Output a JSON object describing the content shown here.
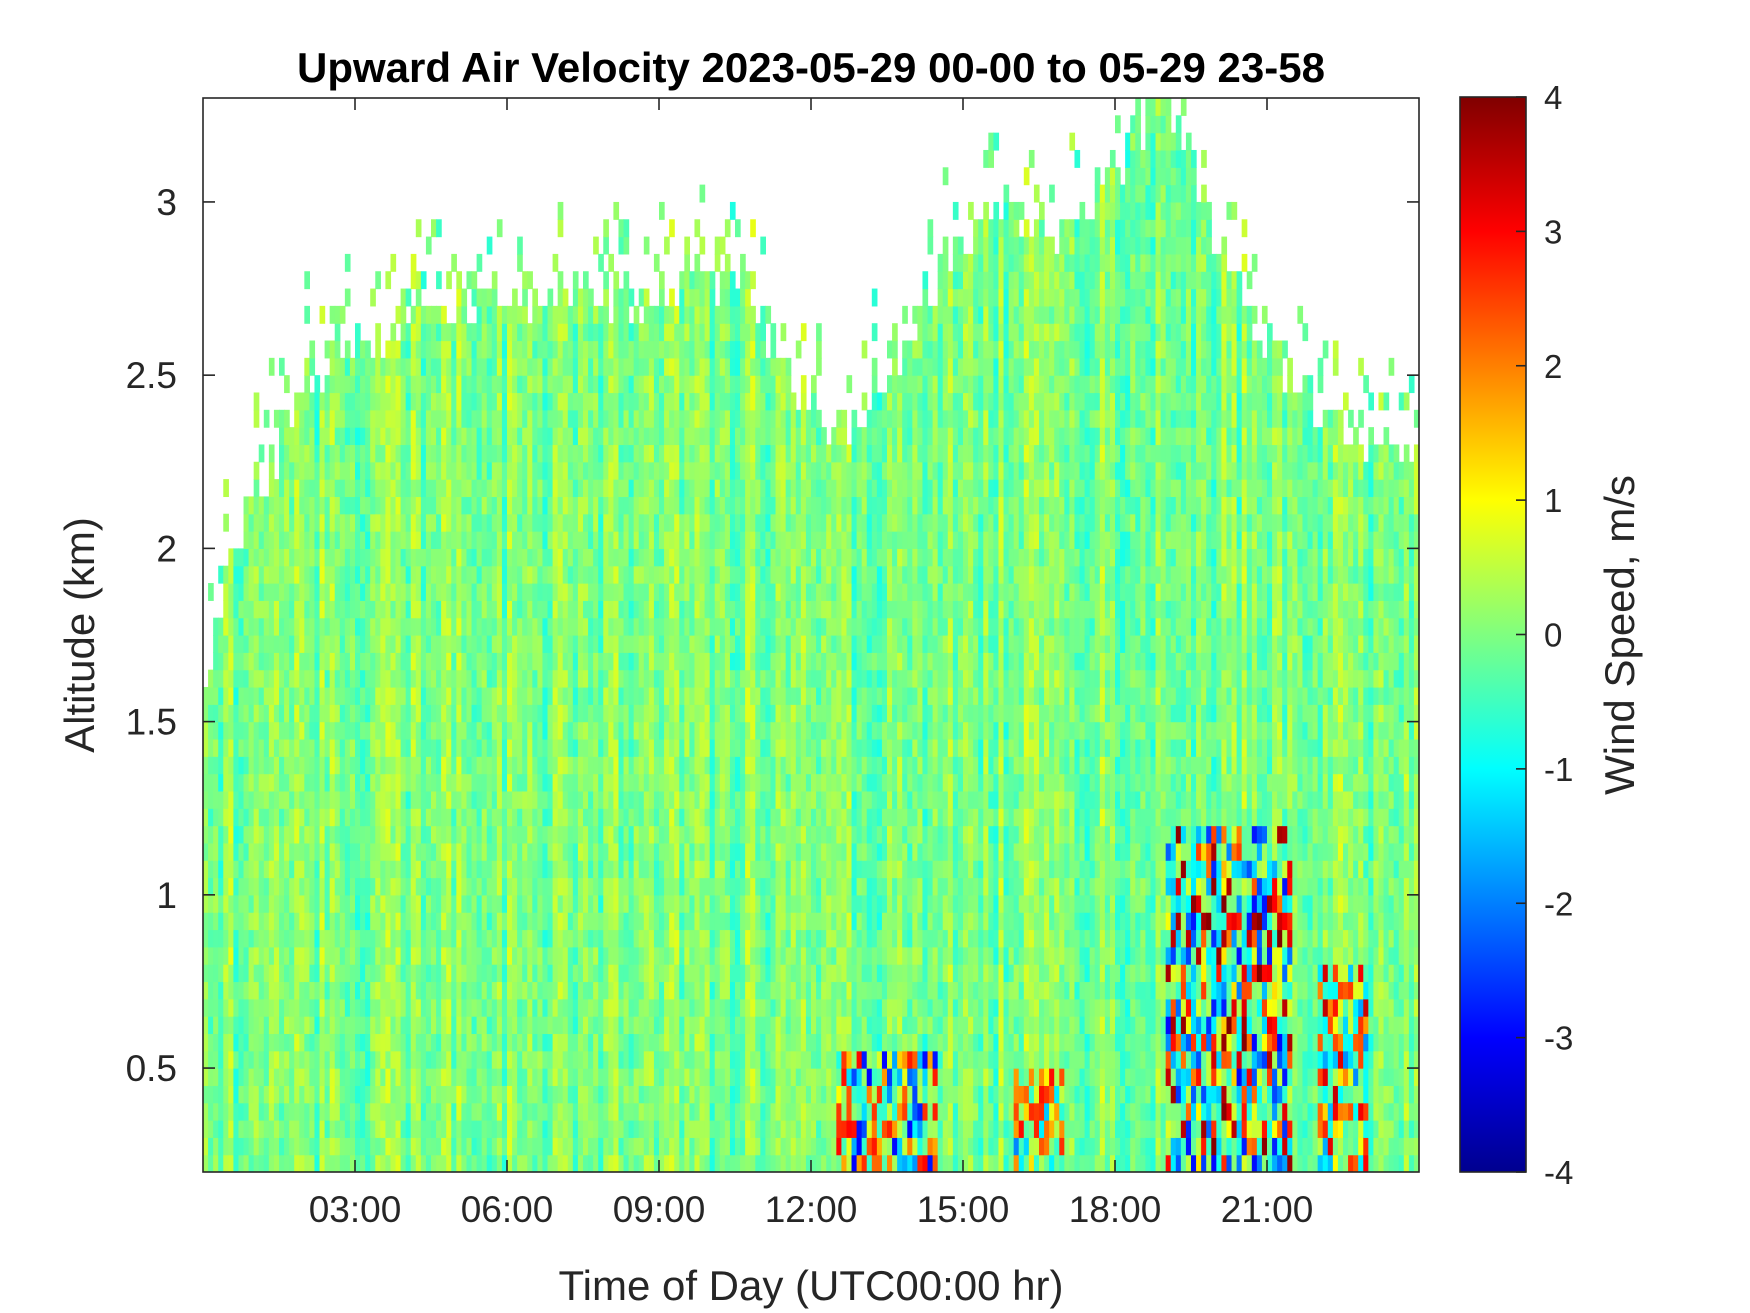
{
  "chart_data": {
    "type": "heatmap",
    "title": "Upward Air Velocity 2023-05-29 00-00 to 05-29 23-58",
    "xlabel": "Time of Day (UTC00:00 hr)",
    "ylabel": "Altitude (km)",
    "x_unit": "hours",
    "xlim": [
      0,
      24
    ],
    "ylim": [
      0.2,
      3.3
    ],
    "x_ticks": [
      {
        "value": 3,
        "label": "03:00"
      },
      {
        "value": 6,
        "label": "06:00"
      },
      {
        "value": 9,
        "label": "09:00"
      },
      {
        "value": 12,
        "label": "12:00"
      },
      {
        "value": 15,
        "label": "15:00"
      },
      {
        "value": 18,
        "label": "18:00"
      },
      {
        "value": 21,
        "label": "21:00"
      }
    ],
    "y_ticks": [
      {
        "value": 0.5,
        "label": "0.5"
      },
      {
        "value": 1,
        "label": "1"
      },
      {
        "value": 1.5,
        "label": "1.5"
      },
      {
        "value": 2,
        "label": "2"
      },
      {
        "value": 2.5,
        "label": "2.5"
      },
      {
        "value": 3,
        "label": "3"
      }
    ],
    "colorbar": {
      "label": "Wind Speed, m/s",
      "colormap": "jet",
      "clim": [
        -4,
        4
      ],
      "ticks": [
        {
          "value": 4,
          "label": "4"
        },
        {
          "value": 3,
          "label": "3"
        },
        {
          "value": 2,
          "label": "2"
        },
        {
          "value": 1,
          "label": "1"
        },
        {
          "value": 0,
          "label": "0"
        },
        {
          "value": -1,
          "label": "-1"
        },
        {
          "value": -2,
          "label": "-2"
        },
        {
          "value": -3,
          "label": "-3"
        },
        {
          "value": -4,
          "label": "-4"
        }
      ]
    },
    "data_top_profile": [
      {
        "time": 0.0,
        "top_km": 1.6
      },
      {
        "time": 0.6,
        "top_km": 2.0
      },
      {
        "time": 1.5,
        "top_km": 2.3
      },
      {
        "time": 2.0,
        "top_km": 2.5
      },
      {
        "time": 3.0,
        "top_km": 2.6
      },
      {
        "time": 4.0,
        "top_km": 2.65
      },
      {
        "time": 5.0,
        "top_km": 2.7
      },
      {
        "time": 7.0,
        "top_km": 2.75
      },
      {
        "time": 9.0,
        "top_km": 2.72
      },
      {
        "time": 10.5,
        "top_km": 2.8
      },
      {
        "time": 11.5,
        "top_km": 2.5
      },
      {
        "time": 12.5,
        "top_km": 2.3
      },
      {
        "time": 13.5,
        "top_km": 2.5
      },
      {
        "time": 14.5,
        "top_km": 2.8
      },
      {
        "time": 15.5,
        "top_km": 3.0
      },
      {
        "time": 17.0,
        "top_km": 2.9
      },
      {
        "time": 18.0,
        "top_km": 3.1
      },
      {
        "time": 19.0,
        "top_km": 3.3
      },
      {
        "time": 20.0,
        "top_km": 2.9
      },
      {
        "time": 21.0,
        "top_km": 2.6
      },
      {
        "time": 22.0,
        "top_km": 2.4
      },
      {
        "time": 23.0,
        "top_km": 2.3
      },
      {
        "time": 24.0,
        "top_km": 2.3
      }
    ],
    "background_value_ms": 0,
    "strong_updraft_regions": [
      {
        "time_start": 12.5,
        "time_end": 14.5,
        "alt_max_km": 0.55,
        "value_range_ms": [
          -3,
          3
        ]
      },
      {
        "time_start": 16.0,
        "time_end": 17.0,
        "alt_max_km": 0.5,
        "value_range_ms": [
          -2,
          3
        ]
      },
      {
        "time_start": 19.0,
        "time_end": 21.5,
        "alt_max_km": 1.2,
        "value_range_ms": [
          -3,
          4
        ]
      },
      {
        "time_start": 22.0,
        "time_end": 23.0,
        "alt_max_km": 0.8,
        "value_range_ms": [
          -2,
          3.5
        ]
      }
    ]
  }
}
